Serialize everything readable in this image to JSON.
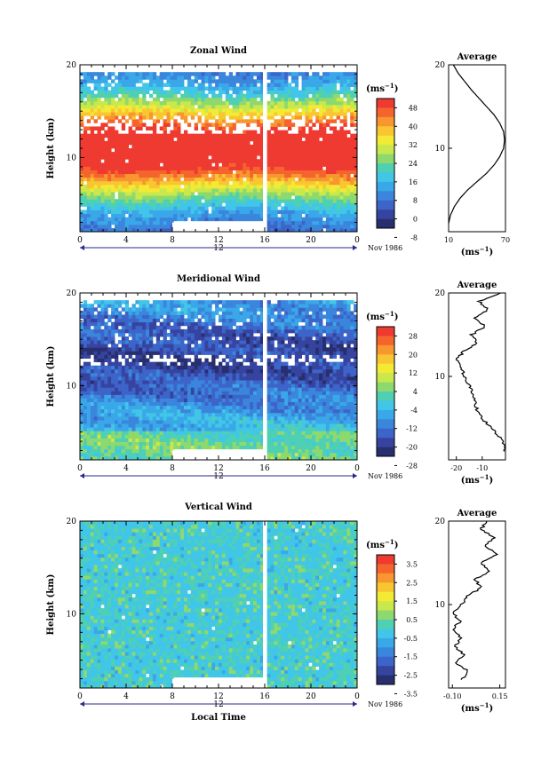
{
  "chart_data": [
    {
      "type": "heatmap",
      "title": "Zonal Wind",
      "ylabel": "Height (km)",
      "yticks": [
        "20",
        "10"
      ],
      "xticks": [
        "0",
        "4",
        "8",
        "12",
        "16",
        "20",
        "0"
      ],
      "date_axis": {
        "day": "12",
        "label": "Nov 1986"
      },
      "colorbar": {
        "unit": "(ms",
        "unit_exp": "−1",
        "labels": [
          "48",
          "40",
          "32",
          "24",
          "16",
          "8",
          "0",
          "-8"
        ],
        "colors": [
          "#ee3a30",
          "#f5642d",
          "#f8962f",
          "#f9c531",
          "#f3ea35",
          "#c9e84c",
          "#8ed96e",
          "#4fd0b2",
          "#41c6e8",
          "#3aa8e8",
          "#3a86dd",
          "#3d64c9",
          "#3644a0",
          "#282f6e"
        ]
      },
      "missing_block": {
        "x": [
          8,
          16
        ],
        "y": [
          1,
          3
        ]
      },
      "gap_x": 16,
      "average": {
        "title": "Average",
        "xticks": [
          "10",
          "70"
        ],
        "xlim": [
          10,
          70
        ],
        "yticks": [
          "20",
          "10"
        ],
        "unit": "(ms",
        "unit_exp": "−1",
        "profile": [
          [
            10,
            1
          ],
          [
            12,
            2
          ],
          [
            16,
            3
          ],
          [
            22,
            4
          ],
          [
            30,
            5
          ],
          [
            40,
            6
          ],
          [
            50,
            7
          ],
          [
            58,
            8
          ],
          [
            64,
            9
          ],
          [
            68,
            10
          ],
          [
            69,
            11
          ],
          [
            68,
            12
          ],
          [
            64,
            13
          ],
          [
            58,
            14
          ],
          [
            50,
            15
          ],
          [
            42,
            16
          ],
          [
            34,
            17
          ],
          [
            27,
            18
          ],
          [
            20,
            19
          ],
          [
            15,
            20
          ]
        ]
      }
    },
    {
      "type": "heatmap",
      "title": "Meridional Wind",
      "ylabel": "Height (km)",
      "yticks": [
        "20",
        "10"
      ],
      "xticks": [
        "0",
        "4",
        "8",
        "12",
        "16",
        "20",
        "0"
      ],
      "date_axis": {
        "day": "12",
        "label": "Nov 1986"
      },
      "colorbar": {
        "unit": "(ms",
        "unit_exp": "−1",
        "labels": [
          "28",
          "20",
          "12",
          "4",
          "-4",
          "-12",
          "-20",
          "-28"
        ],
        "colors": [
          "#ee3a30",
          "#f5642d",
          "#f8962f",
          "#f9c531",
          "#f3ea35",
          "#c9e84c",
          "#8ed96e",
          "#4fd0b2",
          "#41c6e8",
          "#3aa8e8",
          "#3a86dd",
          "#3d64c9",
          "#3644a0",
          "#282f6e"
        ]
      },
      "missing_block": {
        "x": [
          8,
          16
        ],
        "y": [
          1,
          3
        ]
      },
      "gap_x": 16,
      "average": {
        "title": "Average",
        "xticks": [
          "-20",
          "-10"
        ],
        "xlim": [
          -23,
          -1
        ],
        "yticks": [
          "20",
          "10"
        ],
        "unit": "(ms",
        "unit_exp": "−1",
        "profile": [
          [
            -1,
            1
          ],
          [
            -2,
            2
          ],
          [
            -4,
            3
          ],
          [
            -7,
            4
          ],
          [
            -10,
            5
          ],
          [
            -12,
            6
          ],
          [
            -13,
            7
          ],
          [
            -14,
            8
          ],
          [
            -15,
            9
          ],
          [
            -17,
            10
          ],
          [
            -18,
            11
          ],
          [
            -20,
            12
          ],
          [
            -17,
            13
          ],
          [
            -12,
            14
          ],
          [
            -14,
            15
          ],
          [
            -9,
            16
          ],
          [
            -13,
            17
          ],
          [
            -8,
            18
          ],
          [
            -11,
            19
          ],
          [
            -3,
            20
          ]
        ]
      }
    },
    {
      "type": "heatmap",
      "title": "Vertical Wind",
      "xlabel": "Local Time",
      "ylabel": "Height (km)",
      "yticks": [
        "20",
        "10"
      ],
      "xticks": [
        "0",
        "4",
        "8",
        "12",
        "16",
        "20",
        "0"
      ],
      "date_axis": {
        "day": "12",
        "label": "Nov 1986"
      },
      "colorbar": {
        "unit": "(ms",
        "unit_exp": "−1",
        "labels": [
          "3.5",
          "2.5",
          "1.5",
          "0.5",
          "-0.5",
          "-1.5",
          "-2.5",
          "-3.5"
        ],
        "colors": [
          "#ee3a30",
          "#f5642d",
          "#f8962f",
          "#f9c531",
          "#f3ea35",
          "#c9e84c",
          "#8ed96e",
          "#4fd0b2",
          "#41c6e8",
          "#3aa8e8",
          "#3a86dd",
          "#3d64c9",
          "#3644a0",
          "#282f6e"
        ]
      },
      "missing_block": {
        "x": [
          8,
          16
        ],
        "y": [
          1,
          3
        ]
      },
      "gap_x": 16,
      "average": {
        "title": "Average",
        "xticks": [
          "-0.10",
          "0.15"
        ],
        "xlim": [
          -0.12,
          0.18
        ],
        "yticks": [
          "20",
          "10"
        ],
        "unit": "(ms",
        "unit_exp": "−1",
        "profile": [
          [
            -0.05,
            1
          ],
          [
            -0.02,
            2
          ],
          [
            -0.08,
            3
          ],
          [
            -0.04,
            4
          ],
          [
            -0.09,
            5
          ],
          [
            -0.05,
            6
          ],
          [
            -0.1,
            7
          ],
          [
            -0.06,
            8
          ],
          [
            -0.1,
            9
          ],
          [
            -0.05,
            10
          ],
          [
            -0.02,
            11
          ],
          [
            0.05,
            12
          ],
          [
            0.02,
            13
          ],
          [
            0.1,
            14
          ],
          [
            0.05,
            15
          ],
          [
            0.14,
            16
          ],
          [
            0.07,
            17
          ],
          [
            0.12,
            18
          ],
          [
            0.05,
            19
          ],
          [
            0.08,
            20
          ]
        ]
      }
    }
  ]
}
